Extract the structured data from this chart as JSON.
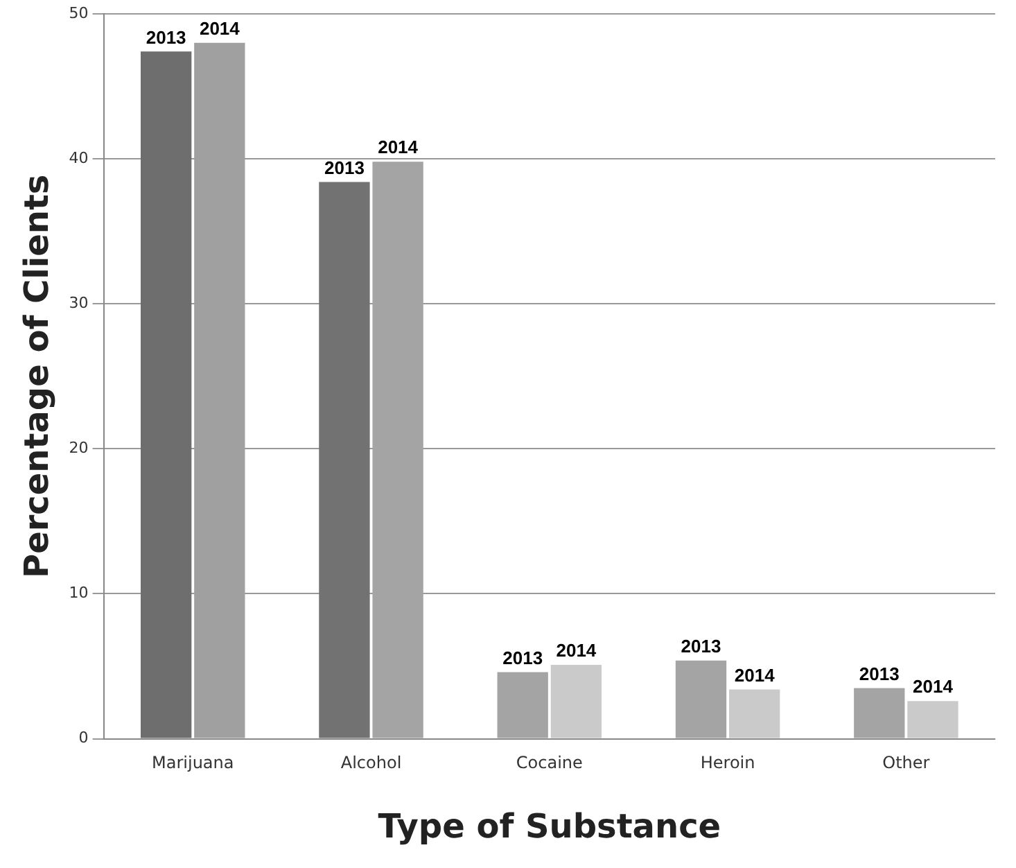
{
  "chart_data": {
    "type": "bar",
    "xlabel": "Type of Substance",
    "ylabel": "Percentage of Clients",
    "categories": [
      "Marijuana",
      "Alcohol",
      "Cocaine",
      "Heroin",
      "Other"
    ],
    "series": [
      {
        "name": "2013",
        "colors": [
          "#6e6e6e",
          "#727272",
          "#a4a4a4",
          "#a4a4a4",
          "#a4a4a4"
        ],
        "values": [
          47.4,
          38.4,
          4.6,
          5.4,
          3.5
        ]
      },
      {
        "name": "2014",
        "colors": [
          "#a0a0a0",
          "#a4a4a4",
          "#cacaca",
          "#cacaca",
          "#cacaca"
        ],
        "values": [
          48.0,
          39.8,
          5.1,
          3.4,
          2.6
        ]
      }
    ],
    "ylim": [
      0,
      50
    ],
    "yticks": [
      0,
      10,
      20,
      30,
      40,
      50
    ],
    "grid": "y",
    "legend": false
  }
}
